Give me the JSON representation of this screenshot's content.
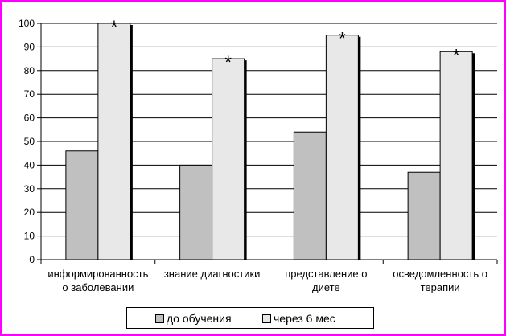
{
  "chart_data": {
    "type": "bar",
    "categories": [
      [
        "информированность",
        "о заболевании"
      ],
      [
        "знание диагностики"
      ],
      [
        "представление о",
        "диете"
      ],
      [
        "осведомленность о",
        "терапии"
      ]
    ],
    "series": [
      {
        "name": "до обучения",
        "values": [
          46,
          40,
          54,
          37
        ],
        "color": "#c0c0c0"
      },
      {
        "name": "через 6 мес",
        "values": [
          100,
          85,
          95,
          88
        ],
        "color": "#e8e8e8"
      }
    ],
    "annotations": [
      "*",
      "*",
      "*",
      "*"
    ],
    "ylim": [
      0,
      100
    ],
    "yticks": [
      0,
      10,
      20,
      30,
      40,
      50,
      60,
      70,
      80,
      90,
      100
    ],
    "grid": true,
    "legend": "bottom"
  }
}
